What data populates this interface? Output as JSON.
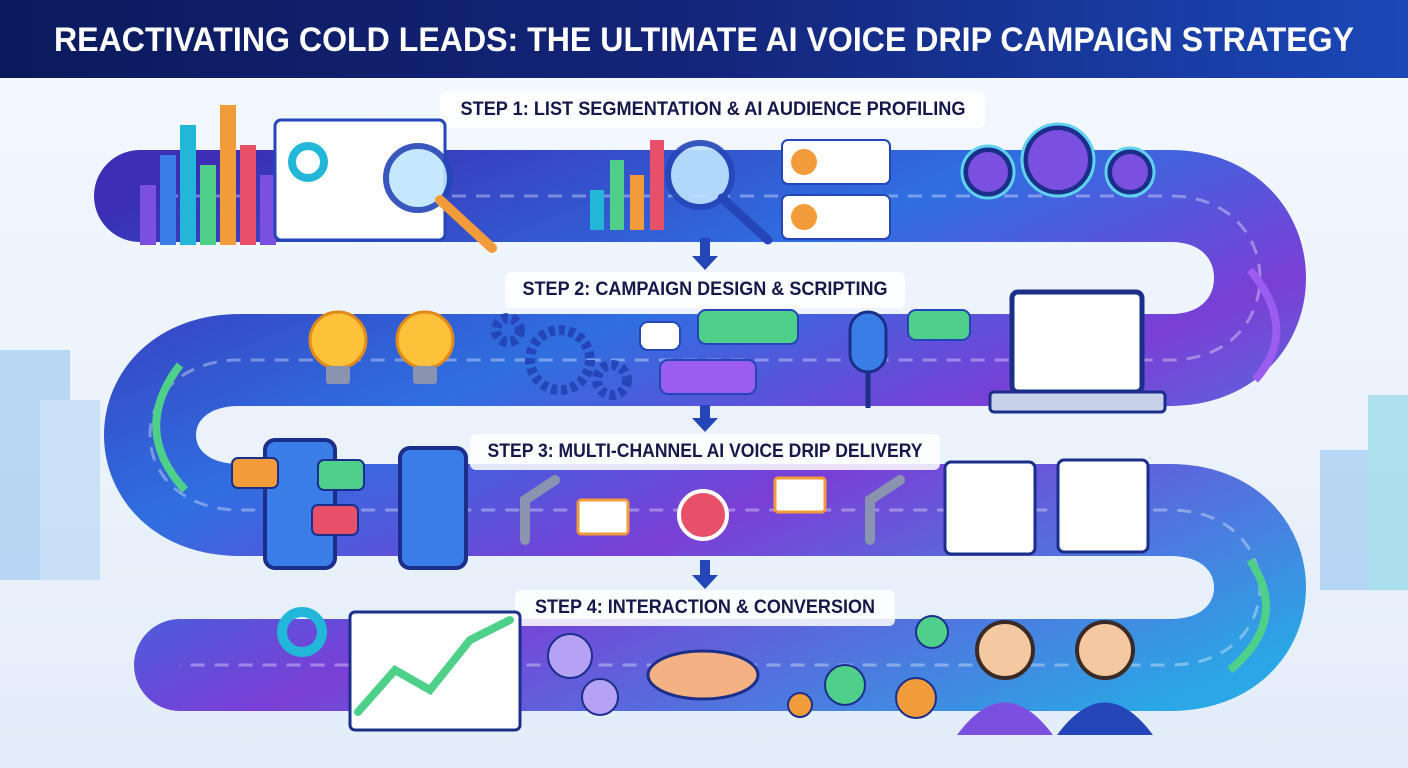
{
  "header": {
    "title": "REACTIVATING COLD LEADS: THE ULTIMATE AI VOICE DRIP CAMPAIGN STRATEGY"
  },
  "steps": [
    {
      "label": "STEP 1: LIST SEGMENTATION & AI AUDIENCE PROFILING"
    },
    {
      "label": "STEP 2: CAMPAIGN DESIGN & SCRIPTING"
    },
    {
      "label": "STEP 3: MULTI-CHANNEL AI VOICE DRIP DELIVERY"
    },
    {
      "label": "STEP 4: INTERACTION & CONVERSION"
    }
  ]
}
